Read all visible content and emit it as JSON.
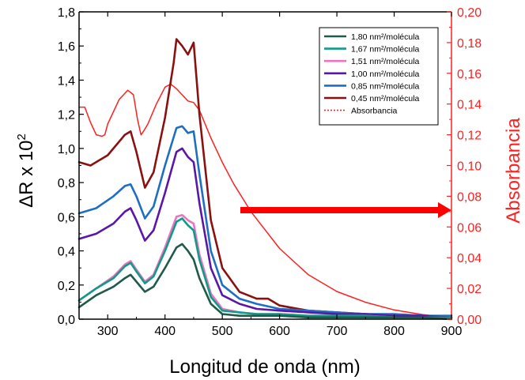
{
  "chart_data": {
    "type": "line",
    "xlabel": "Longitud de onda (nm)",
    "ylabel_left": "ΔR x 10",
    "ylabel_left_sup": "2",
    "ylabel_right": "Absorbancia",
    "xlim": [
      250,
      900
    ],
    "ylim_left": [
      0,
      1.8
    ],
    "ylim_right": [
      0,
      0.2
    ],
    "x_ticks": [
      "300",
      "400",
      "500",
      "600",
      "700",
      "800",
      "900"
    ],
    "x_tick_values": [
      300,
      400,
      500,
      600,
      700,
      800,
      900
    ],
    "y_left_ticks": [
      "0,0",
      "0,2",
      "0,4",
      "0,6",
      "0,8",
      "1,0",
      "1,2",
      "1,4",
      "1,6",
      "1,8"
    ],
    "y_left_tick_values": [
      0,
      0.2,
      0.4,
      0.6,
      0.8,
      1.0,
      1.2,
      1.4,
      1.6,
      1.8
    ],
    "y_right_ticks": [
      "0,00",
      "0,02",
      "0,04",
      "0,06",
      "0,08",
      "0,10",
      "0,12",
      "0,14",
      "0,16",
      "0,18",
      "0,20"
    ],
    "y_right_tick_values": [
      0,
      0.02,
      0.04,
      0.06,
      0.08,
      0.1,
      0.12,
      0.14,
      0.16,
      0.18,
      0.2
    ],
    "legend_position": "top-right",
    "axis_colors": {
      "left": "#000000",
      "right": "#ff2020"
    },
    "arrow": {
      "direction": "right",
      "color": "#ff0000"
    },
    "series": [
      {
        "name": "1,80 nm²/molécula",
        "color": "#1f5a4a",
        "axis": "left",
        "x": [
          250,
          280,
          310,
          330,
          340,
          350,
          365,
          380,
          400,
          420,
          430,
          440,
          450,
          460,
          480,
          500,
          530,
          560,
          600,
          650,
          700,
          750,
          800,
          850,
          900
        ],
        "y": [
          0.07,
          0.14,
          0.19,
          0.24,
          0.26,
          0.22,
          0.16,
          0.19,
          0.3,
          0.42,
          0.44,
          0.4,
          0.35,
          0.24,
          0.09,
          0.03,
          0.02,
          0.02,
          0.02,
          0.01,
          0.01,
          0.01,
          0.01,
          0.01,
          0.0
        ]
      },
      {
        "name": "1,67 nm²/molécula",
        "color": "#119a88",
        "axis": "left",
        "x": [
          250,
          280,
          310,
          330,
          340,
          350,
          365,
          380,
          400,
          420,
          430,
          440,
          450,
          460,
          480,
          500,
          530,
          560,
          600,
          650,
          700,
          750,
          800,
          850,
          900
        ],
        "y": [
          0.11,
          0.18,
          0.24,
          0.31,
          0.33,
          0.28,
          0.21,
          0.25,
          0.4,
          0.57,
          0.59,
          0.55,
          0.52,
          0.35,
          0.13,
          0.05,
          0.04,
          0.03,
          0.03,
          0.02,
          0.02,
          0.02,
          0.01,
          0.01,
          0.01
        ]
      },
      {
        "name": "1,51 nm²/molécula",
        "color": "#ee72c2",
        "axis": "left",
        "x": [
          250,
          280,
          310,
          330,
          340,
          350,
          365,
          380,
          400,
          420,
          430,
          440,
          450,
          460,
          480,
          500,
          530,
          560,
          600,
          650,
          700,
          750,
          800,
          850,
          900
        ],
        "y": [
          0.11,
          0.18,
          0.25,
          0.32,
          0.34,
          0.29,
          0.22,
          0.26,
          0.42,
          0.6,
          0.61,
          0.58,
          0.56,
          0.38,
          0.15,
          0.06,
          0.04,
          0.03,
          0.03,
          0.02,
          0.02,
          0.02,
          0.01,
          0.01,
          0.01
        ]
      },
      {
        "name": "1,00 nm²/molécula",
        "color": "#5b16a8",
        "axis": "left",
        "x": [
          250,
          280,
          310,
          330,
          340,
          350,
          365,
          380,
          400,
          420,
          430,
          440,
          450,
          460,
          480,
          500,
          530,
          560,
          600,
          650,
          700,
          750,
          800,
          850,
          900
        ],
        "y": [
          0.47,
          0.5,
          0.56,
          0.63,
          0.65,
          0.58,
          0.46,
          0.52,
          0.74,
          0.98,
          1.0,
          0.95,
          0.92,
          0.68,
          0.3,
          0.14,
          0.09,
          0.06,
          0.05,
          0.04,
          0.03,
          0.03,
          0.02,
          0.02,
          0.01
        ]
      },
      {
        "name": "0,85 nm²/molécula",
        "color": "#1e6fc4",
        "axis": "left",
        "x": [
          250,
          280,
          310,
          330,
          340,
          350,
          365,
          380,
          400,
          420,
          430,
          440,
          450,
          460,
          480,
          500,
          530,
          560,
          600,
          650,
          700,
          750,
          800,
          850,
          900
        ],
        "y": [
          0.62,
          0.65,
          0.72,
          0.78,
          0.79,
          0.72,
          0.59,
          0.66,
          0.9,
          1.12,
          1.13,
          1.09,
          1.1,
          0.85,
          0.4,
          0.2,
          0.12,
          0.09,
          0.06,
          0.05,
          0.04,
          0.03,
          0.03,
          0.02,
          0.02
        ]
      },
      {
        "name": "0,45 nm²/molécula",
        "color": "#8b1010",
        "axis": "left",
        "x": [
          250,
          270,
          300,
          330,
          340,
          350,
          365,
          380,
          400,
          415,
          420,
          430,
          440,
          450,
          460,
          480,
          500,
          530,
          560,
          580,
          600,
          650,
          700,
          750,
          800,
          850,
          900
        ],
        "y": [
          0.92,
          0.9,
          0.96,
          1.08,
          1.1,
          0.98,
          0.77,
          0.86,
          1.18,
          1.5,
          1.64,
          1.6,
          1.55,
          1.62,
          1.2,
          0.58,
          0.3,
          0.16,
          0.12,
          0.12,
          0.08,
          0.05,
          0.04,
          0.03,
          0.02,
          0.02,
          0.01
        ]
      },
      {
        "name": "Absorbancia",
        "color": "#ff2020",
        "axis": "right",
        "dashed_in_legend": true,
        "x": [
          250,
          260,
          270,
          280,
          290,
          295,
          300,
          320,
          335,
          345,
          352,
          358,
          362,
          370,
          385,
          400,
          410,
          420,
          430,
          440,
          450,
          460,
          480,
          500,
          520,
          550,
          600,
          650,
          700,
          750,
          800,
          850,
          900
        ],
        "y": [
          0.138,
          0.138,
          0.128,
          0.12,
          0.119,
          0.12,
          0.127,
          0.143,
          0.149,
          0.146,
          0.13,
          0.12,
          0.122,
          0.127,
          0.14,
          0.151,
          0.153,
          0.15,
          0.146,
          0.142,
          0.141,
          0.136,
          0.118,
          0.102,
          0.088,
          0.07,
          0.046,
          0.029,
          0.018,
          0.011,
          0.006,
          0.003,
          0.001
        ]
      }
    ]
  }
}
